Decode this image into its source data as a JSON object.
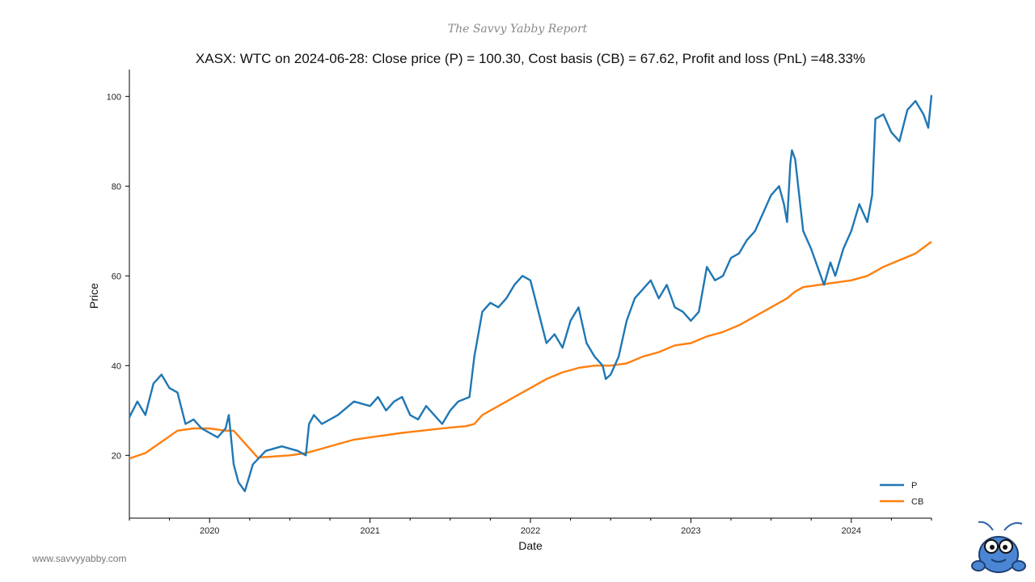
{
  "branding": {
    "report_name": "The Savvy Yabby Report",
    "website": "www.savvyyabby.com"
  },
  "chart_data": {
    "type": "line",
    "title": "XASX: WTC on 2024-06-28: Close price (P) = 100.30, Cost basis (CB) = 67.62, Profit and loss (PnL) =48.33%",
    "xlabel": "Date",
    "ylabel": "Price",
    "xlim": [
      2019.5,
      2024.5
    ],
    "ylim": [
      6,
      106
    ],
    "yticks": [
      20,
      40,
      60,
      80,
      100
    ],
    "xticks": [
      2020,
      2021,
      2022,
      2023,
      2024
    ],
    "grid": false,
    "legend_position": "bottom-right",
    "series": [
      {
        "name": "P",
        "color": "#1f77b4",
        "x": [
          2019.5,
          2019.55,
          2019.6,
          2019.65,
          2019.7,
          2019.75,
          2019.8,
          2019.85,
          2019.9,
          2019.95,
          2020.0,
          2020.05,
          2020.1,
          2020.12,
          2020.15,
          2020.18,
          2020.22,
          2020.27,
          2020.35,
          2020.45,
          2020.55,
          2020.6,
          2020.62,
          2020.65,
          2020.7,
          2020.8,
          2020.9,
          2021.0,
          2021.05,
          2021.1,
          2021.15,
          2021.2,
          2021.25,
          2021.3,
          2021.35,
          2021.4,
          2021.45,
          2021.5,
          2021.55,
          2021.62,
          2021.65,
          2021.7,
          2021.75,
          2021.8,
          2021.85,
          2021.9,
          2021.95,
          2022.0,
          2022.05,
          2022.1,
          2022.15,
          2022.2,
          2022.25,
          2022.3,
          2022.35,
          2022.4,
          2022.45,
          2022.47,
          2022.5,
          2022.55,
          2022.6,
          2022.65,
          2022.7,
          2022.75,
          2022.8,
          2022.85,
          2022.9,
          2022.95,
          2023.0,
          2023.05,
          2023.1,
          2023.15,
          2023.2,
          2023.25,
          2023.3,
          2023.35,
          2023.4,
          2023.45,
          2023.5,
          2023.55,
          2023.58,
          2023.6,
          2023.62,
          2023.63,
          2023.65,
          2023.7,
          2023.75,
          2023.8,
          2023.83,
          2023.87,
          2023.9,
          2023.95,
          2024.0,
          2024.05,
          2024.1,
          2024.13,
          2024.15,
          2024.2,
          2024.25,
          2024.3,
          2024.35,
          2024.4,
          2024.45,
          2024.48,
          2024.5
        ],
        "values": [
          28.5,
          32,
          29,
          36,
          38,
          35,
          34,
          27,
          28,
          26,
          25,
          24,
          26,
          29,
          18,
          14,
          12,
          18,
          21,
          22,
          21,
          20,
          27,
          29,
          27,
          29,
          32,
          31,
          33,
          30,
          32,
          33,
          29,
          28,
          31,
          29,
          27,
          30,
          32,
          33,
          42,
          52,
          54,
          53,
          55,
          58,
          60,
          59,
          52,
          45,
          47,
          44,
          50,
          53,
          45,
          42,
          40,
          37,
          38,
          42,
          50,
          55,
          57,
          59,
          55,
          58,
          53,
          52,
          50,
          52,
          62,
          59,
          60,
          64,
          65,
          68,
          70,
          74,
          78,
          80,
          76,
          72,
          85,
          88,
          86,
          70,
          66,
          61,
          58,
          63,
          60,
          66,
          70,
          76,
          72,
          78,
          95,
          96,
          92,
          90,
          97,
          99,
          96,
          93,
          100.3
        ]
      },
      {
        "name": "CB",
        "color": "#ff7f0e",
        "x": [
          2019.5,
          2019.6,
          2019.7,
          2019.8,
          2019.9,
          2020.0,
          2020.1,
          2020.15,
          2020.3,
          2020.5,
          2020.6,
          2020.7,
          2020.8,
          2020.9,
          2021.0,
          2021.2,
          2021.4,
          2021.5,
          2021.6,
          2021.65,
          2021.7,
          2021.8,
          2021.9,
          2021.95,
          2022.0,
          2022.1,
          2022.2,
          2022.3,
          2022.4,
          2022.5,
          2022.6,
          2022.7,
          2022.8,
          2022.9,
          2023.0,
          2023.1,
          2023.2,
          2023.3,
          2023.4,
          2023.5,
          2023.6,
          2023.65,
          2023.7,
          2023.8,
          2023.9,
          2024.0,
          2024.1,
          2024.2,
          2024.3,
          2024.4,
          2024.5
        ],
        "values": [
          19.3,
          20.5,
          23,
          25.5,
          26,
          26,
          25.5,
          25.5,
          19.5,
          20,
          20.5,
          21.5,
          22.5,
          23.5,
          24,
          25,
          25.8,
          26.2,
          26.5,
          27,
          29,
          31,
          33,
          34,
          35,
          37,
          38.5,
          39.5,
          40,
          40,
          40.5,
          42,
          43,
          44.5,
          45,
          46.5,
          47.5,
          49,
          51,
          53,
          55,
          56.5,
          57.5,
          58,
          58.5,
          59,
          60,
          62,
          63.5,
          65,
          67.62
        ]
      }
    ]
  }
}
